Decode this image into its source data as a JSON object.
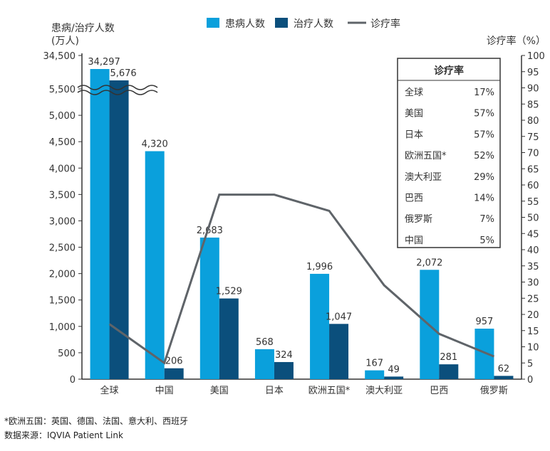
{
  "chart_data": {
    "type": "bar",
    "left_axis_title": [
      "患病/治疗人数",
      "(万人)"
    ],
    "right_axis_title": "诊疗率（%）",
    "categories": [
      "全球",
      "中国",
      "美国",
      "日本",
      "欧洲五国*",
      "澳大利亚",
      "巴西",
      "俄罗斯"
    ],
    "series": [
      {
        "name": "患病人数",
        "type": "bar",
        "color": "#0aa0dc",
        "values": [
          34297,
          4320,
          2683,
          568,
          1996,
          167,
          2072,
          957
        ],
        "labels": [
          "34,297",
          "4,320",
          "2,683",
          "568",
          "1,996",
          "167",
          "2,072",
          "957"
        ]
      },
      {
        "name": "治疗人数",
        "type": "bar",
        "color": "#0b4f7c",
        "values": [
          5676,
          206,
          1529,
          324,
          1047,
          49,
          281,
          62
        ],
        "labels": [
          "5,676",
          "206",
          "1,529",
          "324",
          "1,047",
          "49",
          "281",
          "62"
        ]
      },
      {
        "name": "诊疗率",
        "type": "line",
        "axis": "right",
        "color": "#5f6469",
        "values": [
          17,
          5,
          57,
          57,
          52,
          29,
          14,
          7
        ]
      }
    ],
    "left_ticks": [
      "0",
      "500",
      "1,000",
      "1,500",
      "2,000",
      "2,500",
      "3,000",
      "3,500",
      "4,000",
      "4,500",
      "5,000",
      "5,500",
      "34,500"
    ],
    "left_range": [
      0,
      5500
    ],
    "axis_break": true,
    "right_ticks": [
      0,
      5,
      10,
      15,
      20,
      25,
      30,
      35,
      40,
      45,
      50,
      55,
      60,
      65,
      70,
      75,
      80,
      85,
      90,
      95,
      100
    ],
    "right_range": [
      0,
      100
    ],
    "table": {
      "title": "诊疗率",
      "rows": [
        [
          "全球",
          "17%"
        ],
        [
          "美国",
          "57%"
        ],
        [
          "日本",
          "57%"
        ],
        [
          "欧洲五国*",
          "52%"
        ],
        [
          "澳大利亚",
          "29%"
        ],
        [
          "巴西",
          "14%"
        ],
        [
          "俄罗斯",
          "7%"
        ],
        [
          "中国",
          "5%"
        ]
      ]
    },
    "legend_position": "top"
  },
  "notes": {
    "footnote": "*欧洲五国：英国、德国、法国、意大利、西班牙",
    "source": "数据来源：IQVIA Patient Link"
  }
}
